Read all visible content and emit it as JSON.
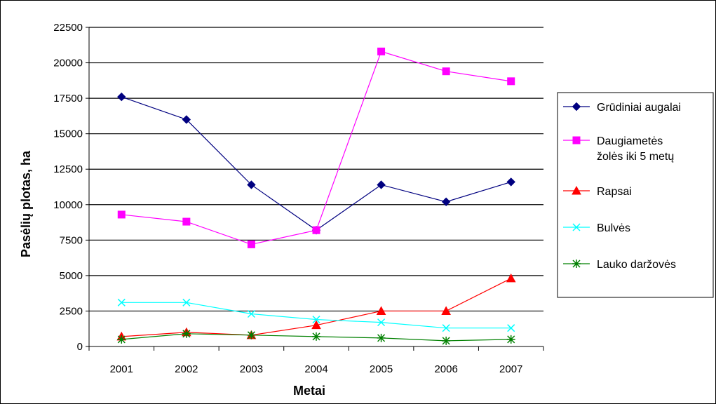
{
  "chart_data": {
    "type": "line",
    "title": "",
    "xlabel": "Metai",
    "ylabel": "Pasėlių plotas, ha",
    "categories": [
      "2001",
      "2002",
      "2003",
      "2004",
      "2005",
      "2006",
      "2007"
    ],
    "ylim": [
      0,
      22500
    ],
    "yticks": [
      0,
      2500,
      5000,
      7500,
      10000,
      12500,
      15000,
      17500,
      20000,
      22500
    ],
    "grid": true,
    "legend_position": "right",
    "series": [
      {
        "name": "Grūdiniai augalai",
        "color": "#000080",
        "marker": "diamond",
        "values": [
          17600,
          16000,
          11400,
          8200,
          11400,
          10200,
          11600
        ]
      },
      {
        "name": "Daugiametės žolės iki 5 metų",
        "color": "#ff00ff",
        "marker": "square",
        "values": [
          9300,
          8800,
          7200,
          8200,
          20800,
          19400,
          18700
        ]
      },
      {
        "name": "Rapsai",
        "color": "#ff0000",
        "marker": "triangle",
        "values": [
          700,
          1000,
          800,
          1500,
          2500,
          2500,
          4800
        ]
      },
      {
        "name": "Bulvės",
        "color": "#00ffff",
        "marker": "x",
        "values": [
          3100,
          3100,
          2300,
          1900,
          1700,
          1300,
          1300
        ]
      },
      {
        "name": "Lauko daržovės",
        "color": "#008000",
        "marker": "star",
        "values": [
          500,
          900,
          800,
          700,
          600,
          400,
          500
        ]
      }
    ]
  }
}
